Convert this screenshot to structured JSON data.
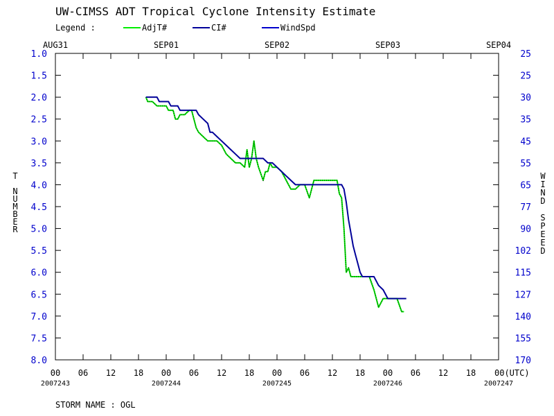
{
  "header": {
    "title": "UW-CIMSS ADT Tropical Cyclone Intensity Estimate",
    "legend_label": "Legend :"
  },
  "chart_data": {
    "type": "line",
    "title": "UW-CIMSS ADT Tropical Cyclone Intensity Estimate",
    "storm_name": "STORM NAME : OGL",
    "left_axis": {
      "label": "T NUMBER",
      "ticks": [
        "1.0",
        "1.5",
        "2.0",
        "2.5",
        "3.0",
        "3.5",
        "4.0",
        "4.5",
        "5.0",
        "5.5",
        "6.0",
        "6.5",
        "7.0",
        "7.5",
        "8.0"
      ],
      "range": [
        1.0,
        8.0
      ],
      "inverted": true
    },
    "right_axis": {
      "label": "WIND SPEED",
      "ticks": [
        "25",
        "25",
        "30",
        "35",
        "45",
        "55",
        "65",
        "77",
        "90",
        "102",
        "115",
        "127",
        "140",
        "155",
        "170"
      ]
    },
    "x_axis": {
      "range_hours": [
        0,
        96
      ],
      "ticks": [
        "00",
        "06",
        "12",
        "18",
        "00",
        "06",
        "12",
        "18",
        "00",
        "06",
        "12",
        "18",
        "00",
        "06",
        "12",
        "18",
        "00(UTC)"
      ],
      "date_labels": [
        "2007243",
        "2007244",
        "2007245",
        "2007246",
        "2007247"
      ],
      "top_labels": [
        "AUG31",
        "SEP01",
        "SEP02",
        "SEP03",
        "SEP04"
      ]
    },
    "series": [
      {
        "name": "AdjT#",
        "color": "#00ee00",
        "points": [
          [
            19.6,
            2.0
          ],
          [
            20.0,
            2.1
          ],
          [
            21.0,
            2.1
          ],
          [
            22.0,
            2.2
          ],
          [
            23.0,
            2.2
          ],
          [
            24.0,
            2.2
          ],
          [
            24.5,
            2.3
          ],
          [
            25.5,
            2.3
          ],
          [
            26.0,
            2.5
          ],
          [
            26.5,
            2.5
          ],
          [
            27.0,
            2.4
          ],
          [
            28.0,
            2.4
          ],
          [
            29.0,
            2.3
          ],
          [
            29.5,
            2.3
          ],
          [
            30.0,
            2.5
          ],
          [
            30.5,
            2.7
          ],
          [
            31.0,
            2.8
          ],
          [
            32.0,
            2.9
          ],
          [
            33.0,
            3.0
          ],
          [
            34.0,
            3.0
          ],
          [
            35.0,
            3.0
          ],
          [
            36.0,
            3.1
          ],
          [
            37.0,
            3.3
          ],
          [
            38.0,
            3.4
          ],
          [
            39.0,
            3.5
          ],
          [
            40.0,
            3.5
          ],
          [
            41.0,
            3.6
          ],
          [
            41.5,
            3.2
          ],
          [
            42.0,
            3.6
          ],
          [
            42.5,
            3.4
          ],
          [
            43.0,
            3.0
          ],
          [
            43.5,
            3.4
          ],
          [
            44.0,
            3.6
          ],
          [
            45.0,
            3.9
          ],
          [
            45.5,
            3.7
          ],
          [
            46.0,
            3.7
          ],
          [
            46.5,
            3.5
          ],
          [
            47.0,
            3.6
          ],
          [
            48.0,
            3.6
          ],
          [
            49.0,
            3.7
          ],
          [
            50.0,
            3.9
          ],
          [
            51.0,
            4.1
          ],
          [
            52.0,
            4.1
          ],
          [
            53.0,
            4.0
          ],
          [
            54.0,
            4.0
          ],
          [
            55.0,
            4.3
          ],
          [
            56.0,
            3.9
          ],
          [
            57.0,
            3.9
          ],
          [
            58.0,
            3.9
          ],
          [
            59.0,
            3.9
          ],
          [
            60.0,
            3.9
          ],
          [
            61.0,
            3.9
          ],
          [
            61.5,
            4.2
          ],
          [
            62.0,
            4.3
          ],
          [
            62.5,
            5.0
          ],
          [
            63.0,
            6.0
          ],
          [
            63.5,
            5.9
          ],
          [
            64.0,
            6.1
          ],
          [
            65.0,
            6.1
          ],
          [
            66.0,
            6.1
          ],
          [
            67.0,
            6.1
          ],
          [
            68.0,
            6.1
          ],
          [
            69.0,
            6.4
          ],
          [
            70.0,
            6.8
          ],
          [
            71.0,
            6.6
          ],
          [
            72.0,
            6.6
          ],
          [
            73.0,
            6.6
          ],
          [
            74.0,
            6.6
          ],
          [
            75.0,
            6.9
          ],
          [
            75.5,
            6.9
          ]
        ]
      },
      {
        "name": "CI#",
        "color": "#000099",
        "points": [
          [
            19.6,
            2.0
          ],
          [
            22.0,
            2.0
          ],
          [
            22.5,
            2.1
          ],
          [
            24.5,
            2.1
          ],
          [
            25.0,
            2.2
          ],
          [
            26.5,
            2.2
          ],
          [
            27.0,
            2.3
          ],
          [
            30.5,
            2.3
          ],
          [
            31.0,
            2.4
          ],
          [
            32.0,
            2.5
          ],
          [
            33.0,
            2.6
          ],
          [
            33.5,
            2.8
          ],
          [
            34.0,
            2.8
          ],
          [
            35.0,
            2.9
          ],
          [
            36.0,
            3.0
          ],
          [
            37.0,
            3.1
          ],
          [
            38.0,
            3.2
          ],
          [
            39.0,
            3.3
          ],
          [
            40.0,
            3.4
          ],
          [
            41.0,
            3.4
          ],
          [
            42.0,
            3.4
          ],
          [
            43.0,
            3.4
          ],
          [
            44.0,
            3.4
          ],
          [
            45.0,
            3.4
          ],
          [
            46.0,
            3.5
          ],
          [
            47.0,
            3.5
          ],
          [
            48.0,
            3.6
          ],
          [
            49.0,
            3.7
          ],
          [
            50.0,
            3.8
          ],
          [
            51.0,
            3.9
          ],
          [
            52.0,
            4.0
          ],
          [
            53.0,
            4.0
          ],
          [
            54.0,
            4.0
          ],
          [
            55.0,
            4.0
          ],
          [
            56.0,
            4.0
          ],
          [
            57.0,
            4.0
          ],
          [
            58.0,
            4.0
          ],
          [
            59.0,
            4.0
          ],
          [
            60.0,
            4.0
          ],
          [
            61.0,
            4.0
          ],
          [
            62.0,
            4.0
          ],
          [
            62.5,
            4.1
          ],
          [
            63.0,
            4.4
          ],
          [
            63.5,
            4.8
          ],
          [
            64.0,
            5.1
          ],
          [
            64.5,
            5.4
          ],
          [
            65.0,
            5.6
          ],
          [
            65.5,
            5.8
          ],
          [
            66.0,
            6.0
          ],
          [
            66.5,
            6.1
          ],
          [
            68.0,
            6.1
          ],
          [
            69.0,
            6.1
          ],
          [
            70.0,
            6.3
          ],
          [
            71.0,
            6.4
          ],
          [
            72.0,
            6.6
          ],
          [
            73.0,
            6.6
          ],
          [
            74.0,
            6.6
          ],
          [
            75.0,
            6.6
          ],
          [
            76.0,
            6.6
          ]
        ]
      },
      {
        "name": "WindSpd",
        "color": "#0000cc",
        "points": []
      }
    ]
  }
}
